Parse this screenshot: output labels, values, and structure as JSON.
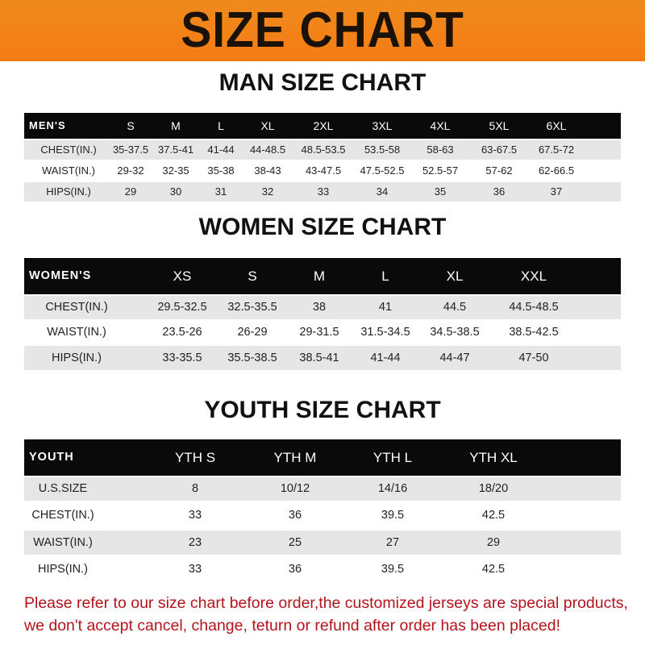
{
  "banner_title": "SIZE CHART",
  "tables": [
    {
      "title": "MAN SIZE CHART",
      "header": [
        "MEN'S",
        "S",
        "M",
        "L",
        "XL",
        "2XL",
        "3XL",
        "4XL",
        "5XL",
        "6XL"
      ],
      "rows": [
        [
          "CHEST(IN.)",
          "35-37.5",
          "37.5-41",
          "41-44",
          "44-48.5",
          "48.5-53.5",
          "53.5-58",
          "58-63",
          "63-67.5",
          "67.5-72"
        ],
        [
          "WAIST(IN.)",
          "29-32",
          "32-35",
          "35-38",
          "38-43",
          "43-47.5",
          "47.5-52.5",
          "52.5-57",
          "57-62",
          "62-66.5"
        ],
        [
          "HIPS(IN.)",
          "29",
          "30",
          "31",
          "32",
          "33",
          "34",
          "35",
          "36",
          "37"
        ]
      ]
    },
    {
      "title": "WOMEN SIZE CHART",
      "header": [
        "WOMEN'S",
        "XS",
        "S",
        "M",
        "L",
        "XL",
        "XXL"
      ],
      "rows": [
        [
          "CHEST(IN.)",
          "29.5-32.5",
          "32.5-35.5",
          "38",
          "41",
          "44.5",
          "44.5-48.5"
        ],
        [
          "WAIST(IN.)",
          "23.5-26",
          "26-29",
          "29-31.5",
          "31.5-34.5",
          "34.5-38.5",
          "38.5-42.5"
        ],
        [
          "HIPS(IN.)",
          "33-35.5",
          "35.5-38.5",
          "38.5-41",
          "41-44",
          "44-47",
          "47-50"
        ]
      ]
    },
    {
      "title": "YOUTH SIZE CHART",
      "header": [
        "YOUTH",
        "YTH S",
        "YTH M",
        "YTH L",
        "YTH XL"
      ],
      "rows": [
        [
          "U.S.SIZE",
          "8",
          "10/12",
          "14/16",
          "18/20"
        ],
        [
          "CHEST(IN.)",
          "33",
          "36",
          "39.5",
          "42.5"
        ],
        [
          "WAIST(IN.)",
          "23",
          "25",
          "27",
          "29"
        ],
        [
          "HIPS(IN.)",
          "33",
          "36",
          "39.5",
          "42.5"
        ]
      ]
    }
  ],
  "footer": {
    "line1": "Please refer to our size chart before order,the customized jerseys are special products,",
    "line2": "we don't accept cancel, change, teturn or refund after order has been placed!"
  },
  "colors": {
    "banner": "#f47c14",
    "header_row": "#0a0a0a",
    "stripe": "#e6e6e6",
    "footer_text": "#b3141b"
  }
}
